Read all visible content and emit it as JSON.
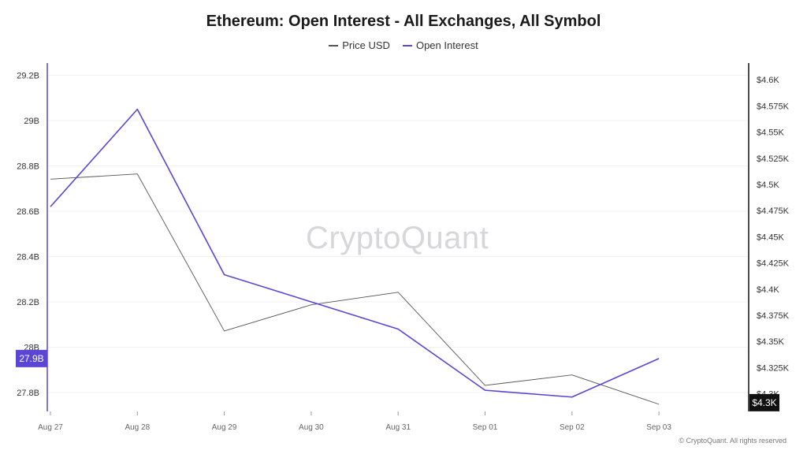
{
  "chart_data": {
    "type": "line",
    "title": "Ethereum: Open Interest - All Exchanges, All Symbol",
    "categories": [
      "Aug 27",
      "Aug 28",
      "Aug 29",
      "Aug 30",
      "Aug 31",
      "Sep 01",
      "Sep 02",
      "Sep 03"
    ],
    "series": [
      {
        "name": "Price USD",
        "axis": "right",
        "color": "#555555",
        "values": [
          4505,
          4510,
          4360,
          4385,
          4397,
          4308,
          4318,
          4290
        ]
      },
      {
        "name": "Open Interest",
        "axis": "left",
        "color": "#5b45d6",
        "values": [
          28.62,
          29.05,
          28.32,
          28.2,
          28.08,
          27.81,
          27.78,
          27.95
        ]
      }
    ],
    "y_left": {
      "ticks": [
        29.2,
        29.0,
        28.8,
        28.6,
        28.4,
        28.2,
        28.0,
        27.8
      ],
      "tick_labels": [
        "29.2B",
        "29B",
        "28.8B",
        "28.6B",
        "28.4B",
        "28.2B",
        "28B",
        "27.8B"
      ],
      "current_value_label": "27.9B",
      "current_value": 27.95
    },
    "y_right": {
      "ticks": [
        4600,
        4575,
        4550,
        4525,
        4500,
        4475,
        4450,
        4425,
        4400,
        4375,
        4350,
        4325,
        4300
      ],
      "tick_labels": [
        "$4.6K",
        "$4.575K",
        "$4.55K",
        "$4.525K",
        "$4.5K",
        "$4.475K",
        "$4.45K",
        "$4.425K",
        "$4.4K",
        "$4.375K",
        "$4.35K",
        "$4.325K",
        "$4.3K"
      ],
      "current_value_label": "$4.3K",
      "current_value": 4290
    },
    "legend": [
      "Price USD",
      "Open Interest"
    ],
    "legend_position": "top-center"
  },
  "watermark": "CryptoQuant",
  "copyright": "© CryptoQuant. All rights reserved"
}
